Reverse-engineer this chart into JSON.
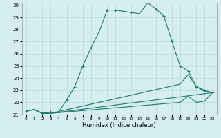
{
  "xlabel": "Humidex (Indice chaleur)",
  "ylabel": "",
  "bg_color": "#d6eef0",
  "grid_color": "#b8d8da",
  "line_color": "#1a7a6e",
  "xlim": [
    -0.5,
    23.5
  ],
  "ylim": [
    21,
    30.2
  ],
  "xticks": [
    0,
    1,
    2,
    3,
    4,
    5,
    6,
    7,
    8,
    9,
    10,
    11,
    12,
    13,
    14,
    15,
    16,
    17,
    18,
    19,
    20,
    21,
    22,
    23
  ],
  "yticks": [
    21,
    22,
    23,
    24,
    25,
    26,
    27,
    28,
    29,
    30
  ],
  "series": [
    {
      "x": [
        0,
        1,
        2,
        3,
        4,
        5,
        6,
        7,
        8,
        9,
        10,
        11,
        12,
        13,
        14,
        15,
        16,
        17,
        18,
        19,
        20,
        21,
        22,
        23
      ],
      "y": [
        21.3,
        21.4,
        21.1,
        21.2,
        21.2,
        22.2,
        23.3,
        25.0,
        26.5,
        27.8,
        29.6,
        29.6,
        29.5,
        29.4,
        29.3,
        30.2,
        29.7,
        29.1,
        27.0,
        25.0,
        24.6,
        23.3,
        23.0,
        22.8
      ],
      "marker": true
    },
    {
      "x": [
        0,
        1,
        2,
        3,
        23
      ],
      "y": [
        21.3,
        21.4,
        21.1,
        21.1,
        22.8
      ],
      "marker": false
    },
    {
      "x": [
        0,
        1,
        2,
        3,
        19,
        20,
        21,
        22,
        23
      ],
      "y": [
        21.3,
        21.4,
        21.1,
        21.1,
        23.5,
        24.3,
        23.3,
        22.9,
        22.8
      ],
      "marker": false
    },
    {
      "x": [
        0,
        1,
        2,
        3,
        19,
        20,
        21,
        22,
        23
      ],
      "y": [
        21.3,
        21.4,
        21.1,
        21.1,
        22.0,
        22.5,
        22.0,
        22.1,
        22.8
      ],
      "marker": false
    }
  ]
}
